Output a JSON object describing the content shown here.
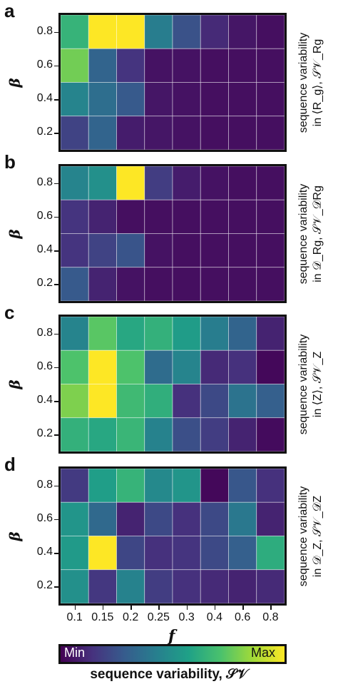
{
  "colors": {
    "min": "#440154",
    "max": "#fde725",
    "palette": [
      "#440154",
      "#46327e",
      "#365c8d",
      "#277f8e",
      "#1fa187",
      "#4ac16d",
      "#a0da39",
      "#fde725"
    ]
  },
  "colorbar": {
    "min_label": "Min",
    "max_label": "Max",
    "title": "sequence variability, 𝒮𝒱"
  },
  "chart_data": [
    {
      "type": "heatmap",
      "panel": "a",
      "ylabel": "β",
      "right_label_line1": "sequence variability",
      "right_label_line2": "in ⟨R_g⟩, 𝒮𝒱_Rg",
      "x_ticks": [
        "0.1",
        "0.15",
        "0.2",
        "0.25",
        "0.3",
        "0.4",
        "0.6",
        "0.8"
      ],
      "y_ticks": [
        "0.8",
        "0.6",
        "0.4",
        "0.2"
      ],
      "values": [
        [
          0.65,
          1.0,
          1.0,
          0.42,
          0.25,
          0.12,
          0.06,
          0.04
        ],
        [
          0.78,
          0.32,
          0.15,
          0.05,
          0.05,
          0.04,
          0.04,
          0.04
        ],
        [
          0.45,
          0.36,
          0.28,
          0.06,
          0.05,
          0.04,
          0.04,
          0.04
        ],
        [
          0.2,
          0.32,
          0.08,
          0.06,
          0.05,
          0.04,
          0.04,
          0.04
        ]
      ]
    },
    {
      "type": "heatmap",
      "panel": "b",
      "ylabel": "β",
      "right_label_line1": "sequence variability",
      "right_label_line2": "in 𝒟_Rg, 𝒮𝒱_𝒟Rg",
      "x_ticks": [
        "0.1",
        "0.15",
        "0.2",
        "0.25",
        "0.3",
        "0.4",
        "0.6",
        "0.8"
      ],
      "y_ticks": [
        "0.8",
        "0.6",
        "0.4",
        "0.2"
      ],
      "values": [
        [
          0.45,
          0.5,
          1.0,
          0.18,
          0.08,
          0.05,
          0.04,
          0.04
        ],
        [
          0.15,
          0.1,
          0.04,
          0.04,
          0.04,
          0.04,
          0.04,
          0.04
        ],
        [
          0.15,
          0.2,
          0.26,
          0.05,
          0.04,
          0.04,
          0.04,
          0.04
        ],
        [
          0.28,
          0.1,
          0.05,
          0.04,
          0.04,
          0.04,
          0.04,
          0.04
        ]
      ]
    },
    {
      "type": "heatmap",
      "panel": "c",
      "ylabel": "β",
      "right_label_line1": "sequence variability",
      "right_label_line2": "in ⟨Z⟩, 𝒮𝒱_Z",
      "x_ticks": [
        "0.1",
        "0.15",
        "0.2",
        "0.25",
        "0.3",
        "0.4",
        "0.6",
        "0.8"
      ],
      "y_ticks": [
        "0.8",
        "0.6",
        "0.4",
        "0.2"
      ],
      "values": [
        [
          0.45,
          0.74,
          0.6,
          0.64,
          0.55,
          0.42,
          0.32,
          0.1
        ],
        [
          0.72,
          1.0,
          0.72,
          0.35,
          0.45,
          0.12,
          0.14,
          0.02
        ],
        [
          0.8,
          1.0,
          0.68,
          0.63,
          0.14,
          0.22,
          0.38,
          0.3
        ],
        [
          0.64,
          0.6,
          0.66,
          0.44,
          0.24,
          0.18,
          0.1,
          0.03
        ]
      ]
    },
    {
      "type": "heatmap",
      "panel": "d",
      "ylabel": "β",
      "right_label_line1": "sequence variability",
      "right_label_line2": "in 𝒟_Z, 𝒮𝒱_𝒟Z",
      "x_ticks": [
        "0.1",
        "0.15",
        "0.2",
        "0.25",
        "0.3",
        "0.4",
        "0.6",
        "0.8"
      ],
      "y_ticks": [
        "0.8",
        "0.6",
        "0.4",
        "0.2"
      ],
      "values": [
        [
          0.17,
          0.56,
          0.65,
          0.47,
          0.52,
          0.02,
          0.27,
          0.14
        ],
        [
          0.52,
          0.34,
          0.1,
          0.22,
          0.14,
          0.22,
          0.4,
          0.1
        ],
        [
          0.54,
          1.0,
          0.21,
          0.14,
          0.15,
          0.22,
          0.3,
          0.62
        ],
        [
          0.5,
          0.16,
          0.44,
          0.18,
          0.14,
          0.12,
          0.1,
          0.12
        ]
      ]
    }
  ],
  "xlabel": "f"
}
